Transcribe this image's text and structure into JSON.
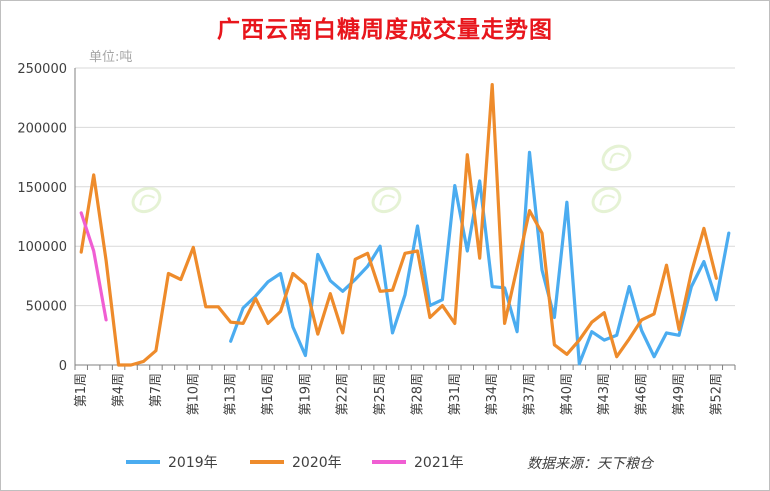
{
  "chart_data": {
    "type": "line",
    "title": "广西云南白糖周度成交量走势图",
    "unit_label": "单位:吨",
    "source": "数据来源：天下粮仓",
    "watermark_text": "天下粮仓",
    "ylim": [
      0,
      250000
    ],
    "yticks": [
      "250000",
      "200000",
      "150000",
      "100000",
      "50000",
      "0"
    ],
    "xtick_labels": [
      "第1周",
      "第4周",
      "第7周",
      "第10周",
      "第13周",
      "第16周",
      "第19周",
      "第22周",
      "第25周",
      "第28周",
      "第31周",
      "第34周",
      "第37周",
      "第40周",
      "第43周",
      "第46周",
      "第49周",
      "第52周"
    ],
    "grid": "horizontal",
    "legend_position": "bottom",
    "series": [
      {
        "name": "2019年",
        "color": "#4bacf0",
        "values": [
          null,
          null,
          null,
          null,
          null,
          null,
          null,
          null,
          null,
          null,
          null,
          null,
          20000,
          48000,
          58000,
          70000,
          77000,
          32000,
          8000,
          93000,
          71000,
          62000,
          72000,
          83000,
          100000,
          27000,
          59000,
          117000,
          50000,
          55000,
          151000,
          96000,
          155000,
          66000,
          65000,
          28000,
          179000,
          80000,
          40000,
          137000,
          1000,
          28000,
          21000,
          25000,
          66000,
          29000,
          7000,
          27000,
          25000,
          66000,
          87000,
          55000,
          111000
        ]
      },
      {
        "name": "2020年",
        "color": "#ee8b2b",
        "values": [
          95000,
          160000,
          88000,
          0,
          0,
          3000,
          12000,
          77000,
          72000,
          99000,
          49000,
          49000,
          36000,
          35000,
          56000,
          35000,
          45000,
          77000,
          68000,
          26000,
          60000,
          27000,
          89000,
          94000,
          62000,
          63000,
          94000,
          96000,
          40000,
          50000,
          35000,
          177000,
          90000,
          236000,
          35000,
          82000,
          130000,
          111000,
          17000,
          9000,
          21000,
          36000,
          44000,
          7000,
          22000,
          38000,
          43000,
          84000,
          30000,
          78000,
          115000,
          73000
        ]
      },
      {
        "name": "2021年",
        "color": "#f05ed3",
        "values": [
          128000,
          96000,
          38000
        ]
      }
    ]
  }
}
